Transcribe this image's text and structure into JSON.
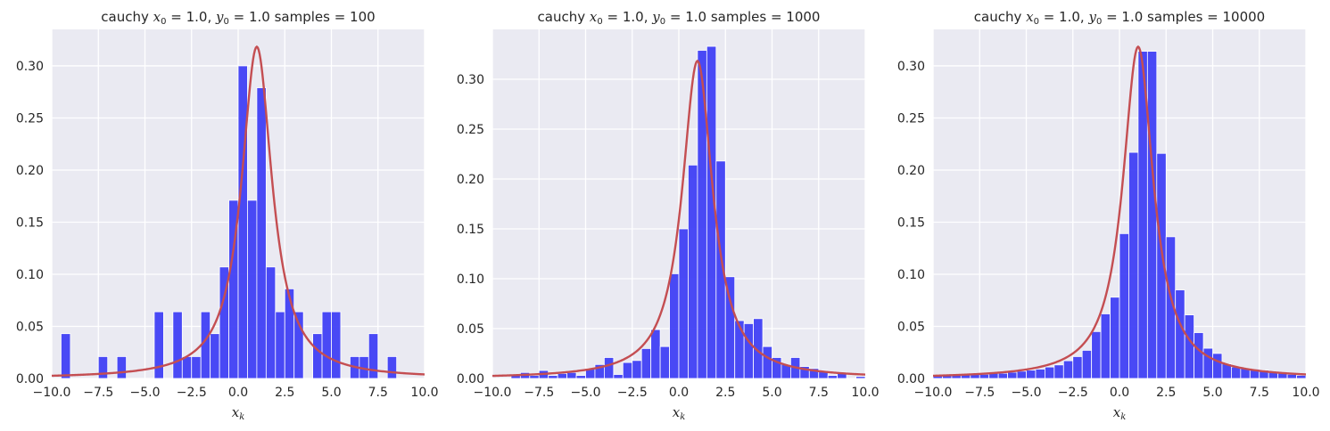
{
  "colors": {
    "background": "#eaeaf2",
    "grid": "#ffffff",
    "bar": "#3c3cf5",
    "curve": "#c44e52"
  },
  "chart_data": [
    {
      "type": "bar",
      "title": {
        "prefix": "cauchy ",
        "x0": "x",
        "x0sub": "0",
        "x0val": " = 1.0, ",
        "y0": "y",
        "y0sub": "0",
        "y0val": " = 1.0",
        "samples": "  samples = 100"
      },
      "xlabel": "x_k",
      "xlabel_main": "x",
      "xlabel_sub": "k",
      "xlim": [
        -10,
        10
      ],
      "ylim": [
        0,
        0.335
      ],
      "xticks": [
        "-10.0",
        "-7.5",
        "-5.0",
        "-2.5",
        "0.0",
        "2.5",
        "5.0",
        "7.5",
        "10.0"
      ],
      "yticks": [
        "0.00",
        "0.05",
        "0.10",
        "0.15",
        "0.20",
        "0.25",
        "0.30"
      ],
      "bin_width": 0.5,
      "bins": [
        [
          -9.5,
          0.043
        ],
        [
          -7.5,
          0.021
        ],
        [
          -6.5,
          0.021
        ],
        [
          -4.5,
          0.064
        ],
        [
          -3.5,
          0.064
        ],
        [
          -3.0,
          0.021
        ],
        [
          -2.5,
          0.021
        ],
        [
          -2.0,
          0.064
        ],
        [
          -1.5,
          0.043
        ],
        [
          -1.0,
          0.107
        ],
        [
          -0.5,
          0.171
        ],
        [
          0.0,
          0.3
        ],
        [
          0.5,
          0.171
        ],
        [
          1.0,
          0.279
        ],
        [
          1.5,
          0.107
        ],
        [
          2.0,
          0.064
        ],
        [
          2.5,
          0.086
        ],
        [
          3.0,
          0.064
        ],
        [
          4.0,
          0.043
        ],
        [
          4.5,
          0.064
        ],
        [
          5.0,
          0.064
        ],
        [
          6.0,
          0.021
        ],
        [
          6.5,
          0.021
        ],
        [
          7.0,
          0.043
        ],
        [
          8.0,
          0.021
        ]
      ],
      "curve": {
        "x0": 1.0,
        "gamma": 1.0
      }
    },
    {
      "type": "bar",
      "title": {
        "prefix": "cauchy ",
        "x0": "x",
        "x0sub": "0",
        "x0val": " = 1.0, ",
        "y0": "y",
        "y0sub": "0",
        "y0val": " = 1.0",
        "samples": "  samples = 1000"
      },
      "xlabel": "x_k",
      "xlabel_main": "x",
      "xlabel_sub": "k",
      "xlim": [
        -10,
        10
      ],
      "ylim": [
        0,
        0.35
      ],
      "xticks": [
        "-10.0",
        "-7.5",
        "-5.0",
        "-2.5",
        "0.0",
        "2.5",
        "5.0",
        "7.5",
        "10.0"
      ],
      "yticks": [
        "0.00",
        "0.05",
        "0.10",
        "0.15",
        "0.20",
        "0.25",
        "0.30"
      ],
      "bin_width": 0.5,
      "bins": [
        [
          -9.0,
          0.003
        ],
        [
          -8.5,
          0.006
        ],
        [
          -8.0,
          0.003
        ],
        [
          -7.5,
          0.008
        ],
        [
          -7.0,
          0.003
        ],
        [
          -6.5,
          0.005
        ],
        [
          -6.0,
          0.006
        ],
        [
          -5.5,
          0.003
        ],
        [
          -5.0,
          0.01
        ],
        [
          -4.5,
          0.014
        ],
        [
          -4.0,
          0.021
        ],
        [
          -3.5,
          0.004
        ],
        [
          -3.0,
          0.016
        ],
        [
          -2.5,
          0.018
        ],
        [
          -2.0,
          0.03
        ],
        [
          -1.5,
          0.049
        ],
        [
          -1.0,
          0.032
        ],
        [
          -0.5,
          0.105
        ],
        [
          0.0,
          0.15
        ],
        [
          0.5,
          0.214
        ],
        [
          1.0,
          0.329
        ],
        [
          1.5,
          0.333
        ],
        [
          2.0,
          0.218
        ],
        [
          2.5,
          0.102
        ],
        [
          3.0,
          0.058
        ],
        [
          3.5,
          0.055
        ],
        [
          4.0,
          0.06
        ],
        [
          4.5,
          0.032
        ],
        [
          5.0,
          0.021
        ],
        [
          5.5,
          0.014
        ],
        [
          6.0,
          0.021
        ],
        [
          6.5,
          0.012
        ],
        [
          7.0,
          0.01
        ],
        [
          7.5,
          0.008
        ],
        [
          8.0,
          0.003
        ],
        [
          8.5,
          0.006
        ],
        [
          9.5,
          0.002
        ]
      ],
      "curve": {
        "x0": 1.0,
        "gamma": 1.0
      }
    },
    {
      "type": "bar",
      "title": {
        "prefix": "cauchy ",
        "x0": "x",
        "x0sub": "0",
        "x0val": " = 1.0, ",
        "y0": "y",
        "y0sub": "0",
        "y0val": " = 1.0",
        "samples": "  samples = 10000"
      },
      "xlabel": "x_k",
      "xlabel_main": "x",
      "xlabel_sub": "k",
      "xlim": [
        -10,
        10
      ],
      "ylim": [
        0,
        0.335
      ],
      "xticks": [
        "-10.0",
        "-7.5",
        "-5.0",
        "-2.5",
        "0.0",
        "2.5",
        "5.0",
        "7.5",
        "10.0"
      ],
      "yticks": [
        "0.00",
        "0.05",
        "0.10",
        "0.15",
        "0.20",
        "0.25",
        "0.30"
      ],
      "bin_width": 0.5,
      "bins": [
        [
          -10.0,
          0.003
        ],
        [
          -9.5,
          0.003
        ],
        [
          -9.0,
          0.003
        ],
        [
          -8.5,
          0.004
        ],
        [
          -8.0,
          0.004
        ],
        [
          -7.5,
          0.004
        ],
        [
          -7.0,
          0.005
        ],
        [
          -6.5,
          0.005
        ],
        [
          -6.0,
          0.006
        ],
        [
          -5.5,
          0.007
        ],
        [
          -5.0,
          0.008
        ],
        [
          -4.5,
          0.009
        ],
        [
          -4.0,
          0.011
        ],
        [
          -3.5,
          0.013
        ],
        [
          -3.0,
          0.017
        ],
        [
          -2.5,
          0.021
        ],
        [
          -2.0,
          0.027
        ],
        [
          -1.5,
          0.045
        ],
        [
          -1.0,
          0.062
        ],
        [
          -0.5,
          0.078
        ],
        [
          0.0,
          0.139
        ],
        [
          0.5,
          0.217
        ],
        [
          1.0,
          0.314
        ],
        [
          1.5,
          0.314
        ],
        [
          2.0,
          0.216
        ],
        [
          2.5,
          0.136
        ],
        [
          3.0,
          0.085
        ],
        [
          3.5,
          0.061
        ],
        [
          4.0,
          0.044
        ],
        [
          4.5,
          0.029
        ],
        [
          5.0,
          0.024
        ],
        [
          5.5,
          0.014
        ],
        [
          6.0,
          0.011
        ],
        [
          6.5,
          0.01
        ],
        [
          7.0,
          0.009
        ],
        [
          7.5,
          0.008
        ],
        [
          8.0,
          0.006
        ],
        [
          8.5,
          0.005
        ],
        [
          9.0,
          0.004
        ],
        [
          9.5,
          0.003
        ]
      ],
      "curve": {
        "x0": 1.0,
        "gamma": 1.0
      }
    }
  ]
}
